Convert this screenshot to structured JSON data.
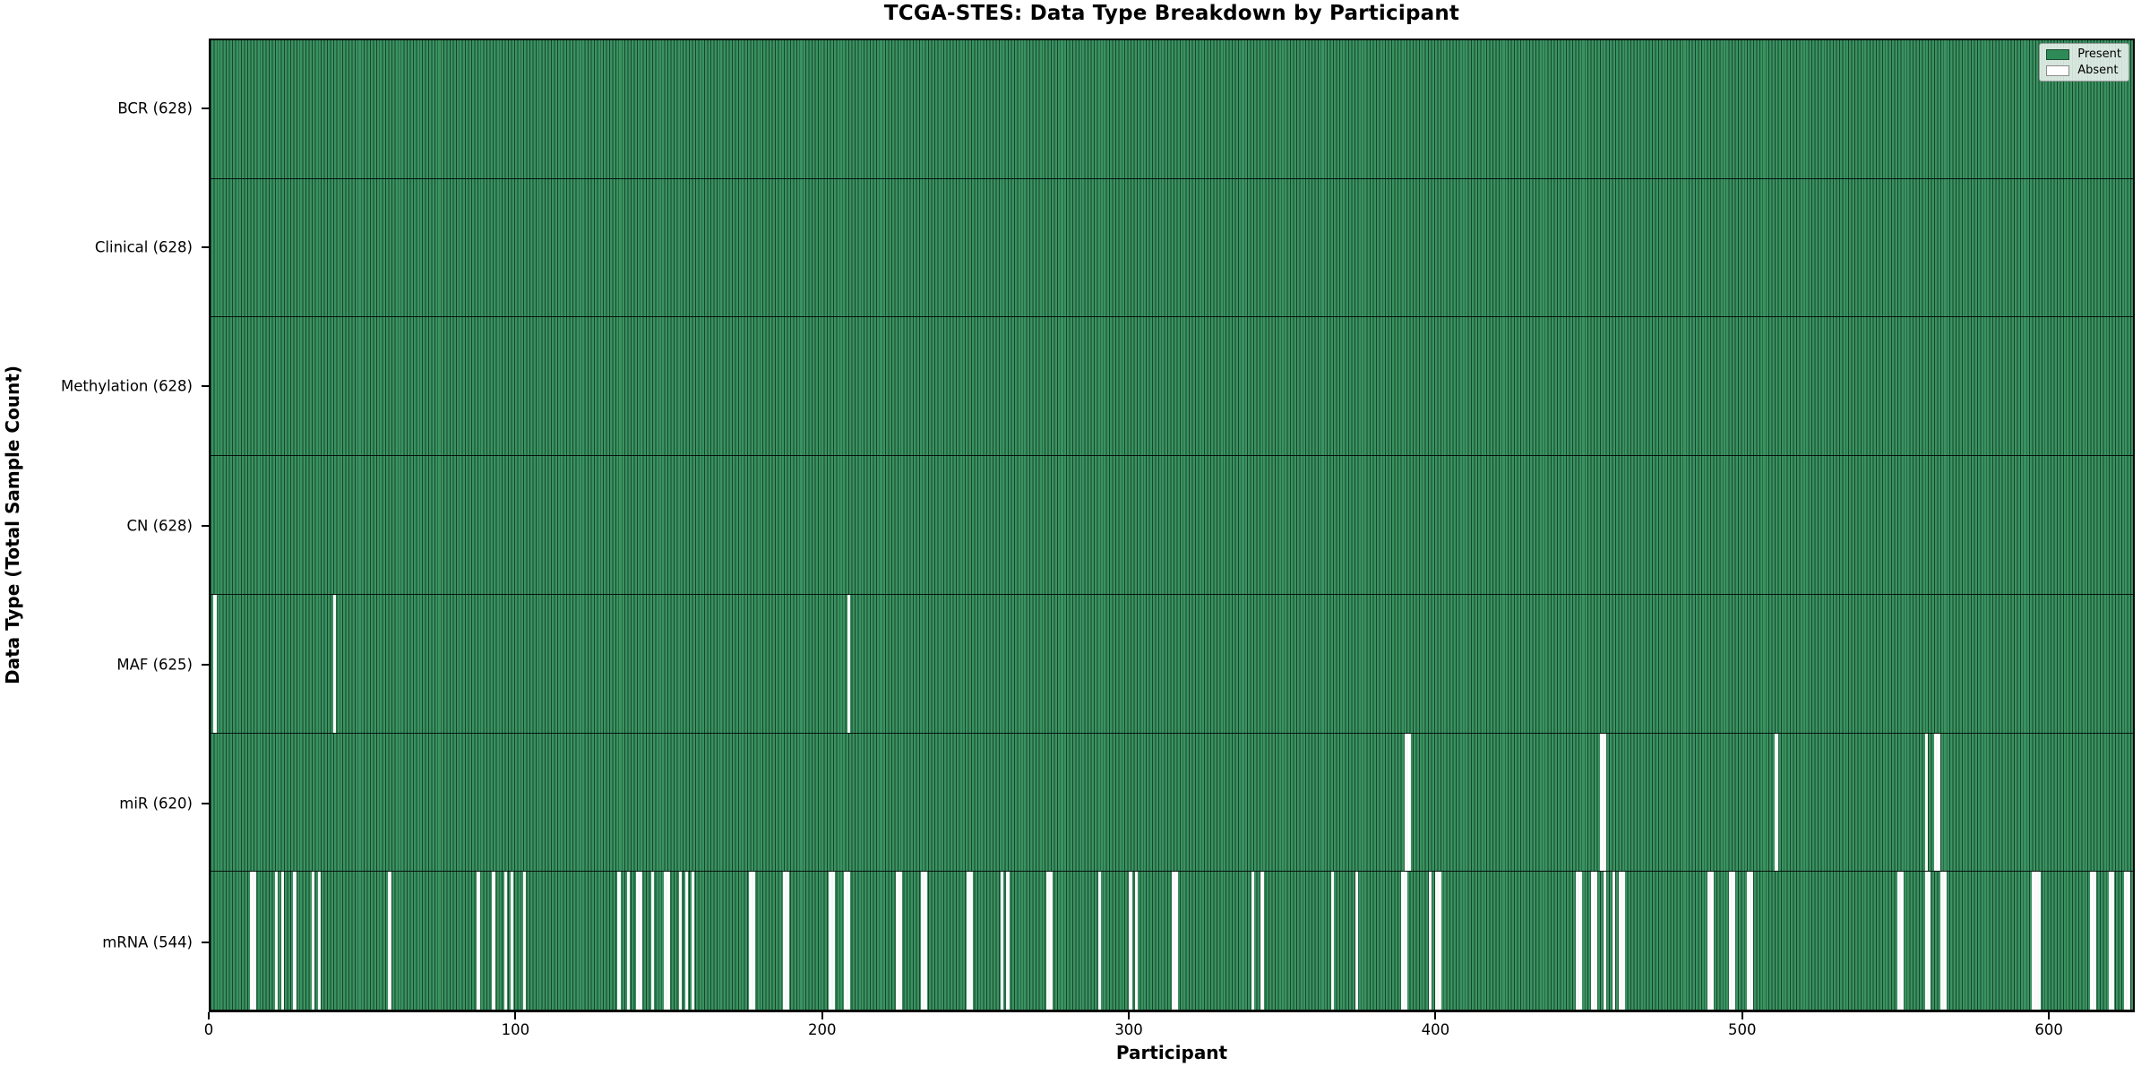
{
  "title": "TCGA-STES: Data Type Breakdown by Participant",
  "axes": {
    "xlabel": "Participant",
    "ylabel": "Data Type (Total Sample Count)",
    "x_ticks": [
      0,
      100,
      200,
      300,
      400,
      500,
      600
    ]
  },
  "legend": {
    "entries": [
      {
        "name": "present",
        "label": "Present",
        "color": "#2e8b57"
      },
      {
        "name": "absent",
        "label": "Absent",
        "color": "#ffffff"
      }
    ]
  },
  "colors": {
    "present": "#2e8b57",
    "absent": "#ffffff",
    "bar_edge": "rgba(0,0,0,0.5)",
    "frame": "#000000"
  },
  "chart_data": {
    "type": "heatmap",
    "title": "TCGA-STES: Data Type Breakdown by Participant",
    "xlabel": "Participant",
    "ylabel": "Data Type (Total Sample Count)",
    "x_range": [
      0,
      628
    ],
    "n_participants": 628,
    "x_ticks": [
      0,
      100,
      200,
      300,
      400,
      500,
      600
    ],
    "legend_position": "upper right",
    "grid": false,
    "rows": [
      {
        "data_type": "BCR",
        "label": "BCR (628)",
        "present_count": 628,
        "absent_count": 0,
        "absent_participants": []
      },
      {
        "data_type": "Clinical",
        "label": "Clinical (628)",
        "present_count": 628,
        "absent_count": 0,
        "absent_participants": []
      },
      {
        "data_type": "Methylation",
        "label": "Methylation (628)",
        "present_count": 628,
        "absent_count": 0,
        "absent_participants": []
      },
      {
        "data_type": "CN",
        "label": "CN (628)",
        "present_count": 628,
        "absent_count": 0,
        "absent_participants": []
      },
      {
        "data_type": "MAF",
        "label": "MAF (625)",
        "present_count": 625,
        "absent_count": 3,
        "absent_participants": [
          1,
          40,
          208
        ]
      },
      {
        "data_type": "miR",
        "label": "miR (620)",
        "present_count": 620,
        "absent_count": 8,
        "absent_participants": [
          390,
          391,
          454,
          455,
          511,
          560,
          563,
          564
        ]
      },
      {
        "data_type": "mRNA",
        "label": "mRNA (544)",
        "present_count": 544,
        "absent_count": 84,
        "absent_participants": [
          13,
          14,
          21,
          23,
          27,
          33,
          35,
          58,
          87,
          92,
          96,
          98,
          102,
          133,
          136,
          139,
          140,
          144,
          148,
          149,
          153,
          155,
          157,
          176,
          177,
          187,
          188,
          202,
          203,
          207,
          208,
          224,
          225,
          232,
          233,
          247,
          248,
          258,
          260,
          273,
          274,
          290,
          300,
          302,
          314,
          315,
          340,
          343,
          366,
          374,
          389,
          390,
          398,
          400,
          401,
          446,
          447,
          451,
          452,
          455,
          458,
          460,
          461,
          489,
          490,
          496,
          497,
          502,
          503,
          551,
          552,
          560,
          561,
          565,
          566,
          595,
          596,
          597,
          614,
          615,
          620,
          621,
          625,
          626
        ]
      }
    ]
  }
}
